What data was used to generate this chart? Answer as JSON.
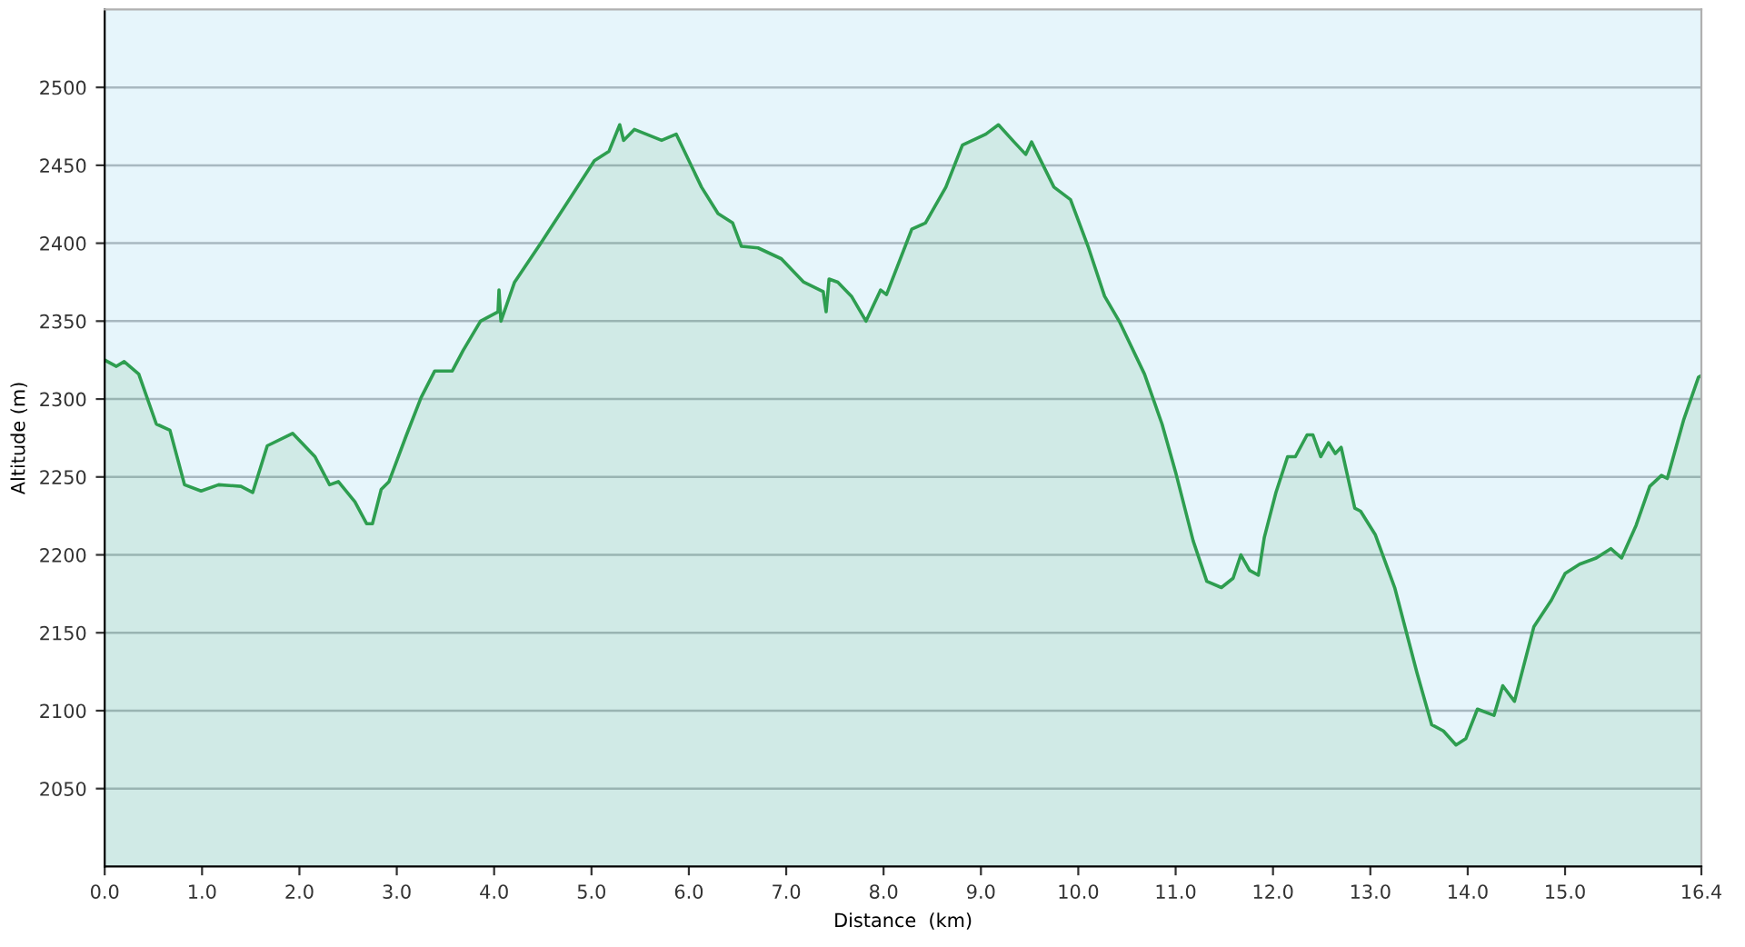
{
  "chart_data": {
    "type": "area",
    "xlabel": "Distance  (km)",
    "ylabel": "Altitude (m)",
    "xlim": [
      0,
      16.4
    ],
    "ylim": [
      2000,
      2550
    ],
    "xticks": [
      {
        "value": 0,
        "label": "0.0"
      },
      {
        "value": 1,
        "label": "1.0"
      },
      {
        "value": 2,
        "label": "2.0"
      },
      {
        "value": 3,
        "label": "3.0"
      },
      {
        "value": 4,
        "label": "4.0"
      },
      {
        "value": 5,
        "label": "5.0"
      },
      {
        "value": 6,
        "label": "6.0"
      },
      {
        "value": 7,
        "label": "7.0"
      },
      {
        "value": 8,
        "label": "8.0"
      },
      {
        "value": 9,
        "label": "9.0"
      },
      {
        "value": 10,
        "label": "10.0"
      },
      {
        "value": 11,
        "label": "11.0"
      },
      {
        "value": 12,
        "label": "12.0"
      },
      {
        "value": 13,
        "label": "13.0"
      },
      {
        "value": 14,
        "label": "14.0"
      },
      {
        "value": 15,
        "label": "15.0"
      },
      {
        "value": 16.4,
        "label": "16.4"
      }
    ],
    "yticks": [
      2050,
      2100,
      2150,
      2200,
      2250,
      2300,
      2350,
      2400,
      2450,
      2500
    ],
    "grid": "y",
    "series": [
      {
        "color": "#2e9e50",
        "x": [
          0,
          0.12,
          0.2,
          0.35,
          0.53,
          0.67,
          0.82,
          0.99,
          1.17,
          1.4,
          1.52,
          1.67,
          1.93,
          2.16,
          2.31,
          2.4,
          2.57,
          2.69,
          2.75,
          2.84,
          2.92,
          3.1,
          3.25,
          3.39,
          3.57,
          3.68,
          3.86,
          4.04,
          4.05,
          4.07,
          4.21,
          4.5,
          4.74,
          5.03,
          5.18,
          5.29,
          5.33,
          5.44,
          5.72,
          5.87,
          6.13,
          6.3,
          6.45,
          6.54,
          6.71,
          6.95,
          7.18,
          7.38,
          7.41,
          7.44,
          7.53,
          7.67,
          7.82,
          7.97,
          8.03,
          8.29,
          8.43,
          8.64,
          8.81,
          9.05,
          9.18,
          9.34,
          9.46,
          9.52,
          9.75,
          9.92,
          10.1,
          10.27,
          10.42,
          10.68,
          10.86,
          11.0,
          11.18,
          11.32,
          11.47,
          11.59,
          11.67,
          11.76,
          11.85,
          11.91,
          12.03,
          12.15,
          12.23,
          12.35,
          12.41,
          12.49,
          12.57,
          12.64,
          12.7,
          12.84,
          12.9,
          13.05,
          13.25,
          13.48,
          13.63,
          13.75,
          13.88,
          13.98,
          14.1,
          14.27,
          14.36,
          14.48,
          14.68,
          14.86,
          15.0,
          15.15,
          15.32,
          15.47,
          15.58,
          15.73,
          15.87,
          15.99,
          16.05,
          16.22,
          16.37,
          16.4
        ],
        "values": [
          2325,
          2321,
          2324,
          2316,
          2284,
          2280,
          2245,
          2241,
          2245,
          2244,
          2240,
          2270,
          2278,
          2263,
          2245,
          2247,
          2234,
          2220,
          2220,
          2242,
          2247,
          2277,
          2301,
          2318,
          2318,
          2331,
          2350,
          2356,
          2370,
          2350,
          2375,
          2402,
          2425,
          2453,
          2459,
          2476,
          2466,
          2473,
          2466,
          2470,
          2436,
          2419,
          2413,
          2398,
          2397,
          2390,
          2375,
          2369,
          2356,
          2377,
          2375,
          2366,
          2350,
          2370,
          2367,
          2409,
          2413,
          2436,
          2463,
          2470,
          2476,
          2465,
          2457,
          2465,
          2436,
          2428,
          2398,
          2366,
          2350,
          2316,
          2284,
          2253,
          2209,
          2183,
          2179,
          2185,
          2200,
          2190,
          2187,
          2211,
          2240,
          2263,
          2263,
          2277,
          2277,
          2263,
          2272,
          2265,
          2269,
          2230,
          2228,
          2213,
          2179,
          2124,
          2091,
          2087,
          2078,
          2082,
          2101,
          2097,
          2116,
          2106,
          2154,
          2171,
          2188,
          2194,
          2198,
          2204,
          2198,
          2219,
          2244,
          2251,
          2249,
          2287,
          2314,
          2315
        ]
      }
    ]
  }
}
